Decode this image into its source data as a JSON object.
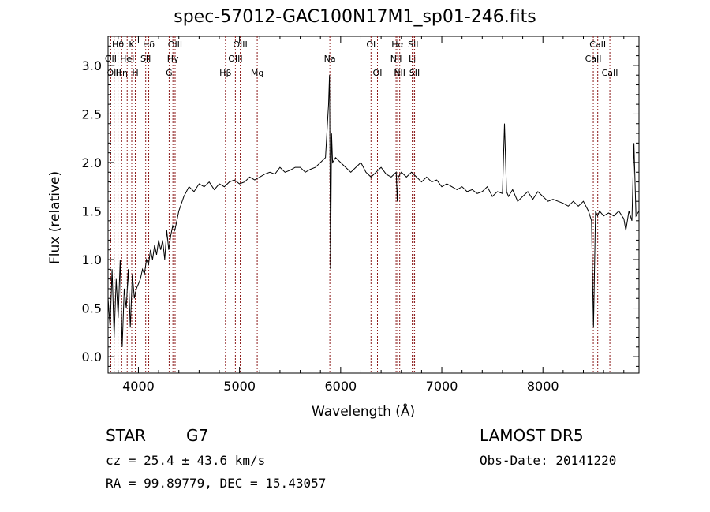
{
  "chart_data": {
    "type": "line",
    "title": "spec-57012-GAC100N17M1_sp01-246.fits",
    "xlabel": "Wavelength (Å)",
    "ylabel": "Flux (relative)",
    "xlim": [
      3700,
      8950
    ],
    "ylim": [
      -0.17,
      3.3
    ],
    "x_ticks": [
      4000,
      5000,
      6000,
      7000,
      8000
    ],
    "x_tick_labels": [
      "4000",
      "5000",
      "6000",
      "7000",
      "8000"
    ],
    "y_ticks": [
      0.0,
      0.5,
      1.0,
      1.5,
      2.0,
      2.5,
      3.0
    ],
    "y_tick_labels": [
      "0.0",
      "0.5",
      "1.0",
      "1.5",
      "2.0",
      "2.5",
      "3.0"
    ],
    "grid": false,
    "line_color": "#000000",
    "marker_line_color": "#8b1a1a",
    "series": [
      {
        "x": [
          3700,
          3720,
          3740,
          3760,
          3780,
          3800,
          3820,
          3840,
          3860,
          3880,
          3900,
          3920,
          3940,
          3960,
          3980,
          4000,
          4020,
          4040,
          4060,
          4080,
          4100,
          4120,
          4140,
          4160,
          4180,
          4200,
          4220,
          4240,
          4260,
          4280,
          4300,
          4320,
          4340,
          4360,
          4380,
          4400,
          4450,
          4500,
          4550,
          4600,
          4650,
          4700,
          4750,
          4800,
          4850,
          4900,
          4950,
          5000,
          5050,
          5100,
          5150,
          5200,
          5250,
          5300,
          5350,
          5400,
          5450,
          5500,
          5550,
          5600,
          5650,
          5700,
          5750,
          5800,
          5850,
          5880,
          5890,
          5895,
          5900,
          5910,
          5920,
          5950,
          6000,
          6050,
          6100,
          6150,
          6200,
          6250,
          6300,
          6350,
          6400,
          6450,
          6500,
          6550,
          6560,
          6570,
          6600,
          6650,
          6700,
          6750,
          6800,
          6850,
          6900,
          6950,
          7000,
          7050,
          7100,
          7150,
          7200,
          7250,
          7300,
          7350,
          7400,
          7450,
          7500,
          7550,
          7600,
          7620,
          7640,
          7660,
          7700,
          7750,
          7800,
          7850,
          7900,
          7950,
          8000,
          8050,
          8100,
          8150,
          8200,
          8250,
          8300,
          8350,
          8400,
          8450,
          8480,
          8500,
          8520,
          8540,
          8560,
          8600,
          8650,
          8700,
          8750,
          8800,
          8820,
          8850,
          8880,
          8900,
          8920,
          8950
        ],
        "y": [
          0.6,
          0.3,
          0.9,
          0.2,
          0.8,
          0.4,
          1.0,
          0.1,
          0.7,
          0.5,
          0.9,
          0.3,
          0.85,
          0.6,
          0.7,
          0.75,
          0.8,
          0.9,
          0.85,
          1.0,
          0.95,
          1.1,
          1.0,
          1.15,
          1.05,
          1.2,
          1.1,
          1.2,
          1.0,
          1.3,
          1.1,
          1.25,
          1.35,
          1.3,
          1.4,
          1.5,
          1.65,
          1.75,
          1.7,
          1.78,
          1.75,
          1.8,
          1.72,
          1.78,
          1.75,
          1.8,
          1.82,
          1.78,
          1.8,
          1.85,
          1.82,
          1.85,
          1.88,
          1.9,
          1.88,
          1.95,
          1.9,
          1.92,
          1.95,
          1.95,
          1.9,
          1.93,
          1.95,
          2.0,
          2.05,
          2.6,
          2.9,
          1.95,
          0.9,
          2.3,
          2.0,
          2.05,
          2.0,
          1.95,
          1.9,
          1.95,
          2.0,
          1.9,
          1.85,
          1.9,
          1.95,
          1.88,
          1.85,
          1.9,
          1.6,
          1.85,
          1.9,
          1.85,
          1.9,
          1.85,
          1.8,
          1.85,
          1.8,
          1.82,
          1.75,
          1.78,
          1.75,
          1.72,
          1.75,
          1.7,
          1.72,
          1.68,
          1.7,
          1.75,
          1.65,
          1.7,
          1.68,
          2.4,
          1.7,
          1.65,
          1.72,
          1.6,
          1.65,
          1.7,
          1.62,
          1.7,
          1.65,
          1.6,
          1.62,
          1.6,
          1.58,
          1.55,
          1.6,
          1.55,
          1.6,
          1.5,
          1.4,
          0.3,
          1.5,
          1.45,
          1.5,
          1.45,
          1.48,
          1.45,
          1.5,
          1.42,
          1.3,
          1.5,
          1.4,
          2.2,
          1.45,
          1.5
        ]
      }
    ],
    "line_markers": [
      {
        "name": "Hθ",
        "x": 3798,
        "row": 1
      },
      {
        "name": "OII",
        "x": 3727,
        "row": 2
      },
      {
        "name": "OIII",
        "x": 3760,
        "row": 3
      },
      {
        "name": "Hη",
        "x": 3835,
        "row": 3
      },
      {
        "name": "HeI",
        "x": 3889,
        "row": 2
      },
      {
        "name": "K",
        "x": 3934,
        "row": 1
      },
      {
        "name": "H",
        "x": 3969,
        "row": 3
      },
      {
        "name": "Hδ",
        "x": 4102,
        "row": 1
      },
      {
        "name": "SII",
        "x": 4072,
        "row": 2
      },
      {
        "name": "OIII",
        "x": 4363,
        "row": 1
      },
      {
        "name": "Hγ",
        "x": 4341,
        "row": 2
      },
      {
        "name": "G",
        "x": 4304,
        "row": 3
      },
      {
        "name": "Hβ",
        "x": 4861,
        "row": 3
      },
      {
        "name": "OIII",
        "x": 5007,
        "row": 1
      },
      {
        "name": "OIII",
        "x": 4959,
        "row": 2
      },
      {
        "name": "Mg",
        "x": 5175,
        "row": 3
      },
      {
        "name": "Na",
        "x": 5893,
        "row": 2
      },
      {
        "name": "OI",
        "x": 6300,
        "row": 1
      },
      {
        "name": "OI",
        "x": 6364,
        "row": 3
      },
      {
        "name": "Hα",
        "x": 6563,
        "row": 1
      },
      {
        "name": "NII",
        "x": 6548,
        "row": 2
      },
      {
        "name": "NII",
        "x": 6584,
        "row": 3
      },
      {
        "name": "SII",
        "x": 6717,
        "row": 1
      },
      {
        "name": "Li",
        "x": 6708,
        "row": 2
      },
      {
        "name": "SII",
        "x": 6731,
        "row": 3
      },
      {
        "name": "CaII",
        "x": 8542,
        "row": 1
      },
      {
        "name": "CaII",
        "x": 8498,
        "row": 2
      },
      {
        "name": "CaII",
        "x": 8662,
        "row": 3
      }
    ]
  },
  "info": {
    "object_class": "STAR",
    "subclass": "G7",
    "survey": "LAMOST DR5",
    "cz": "cz = 25.4 ± 43.6 km/s",
    "obs_date": "Obs-Date: 20141220",
    "coords": "RA =  99.89779, DEC =  15.43057"
  }
}
